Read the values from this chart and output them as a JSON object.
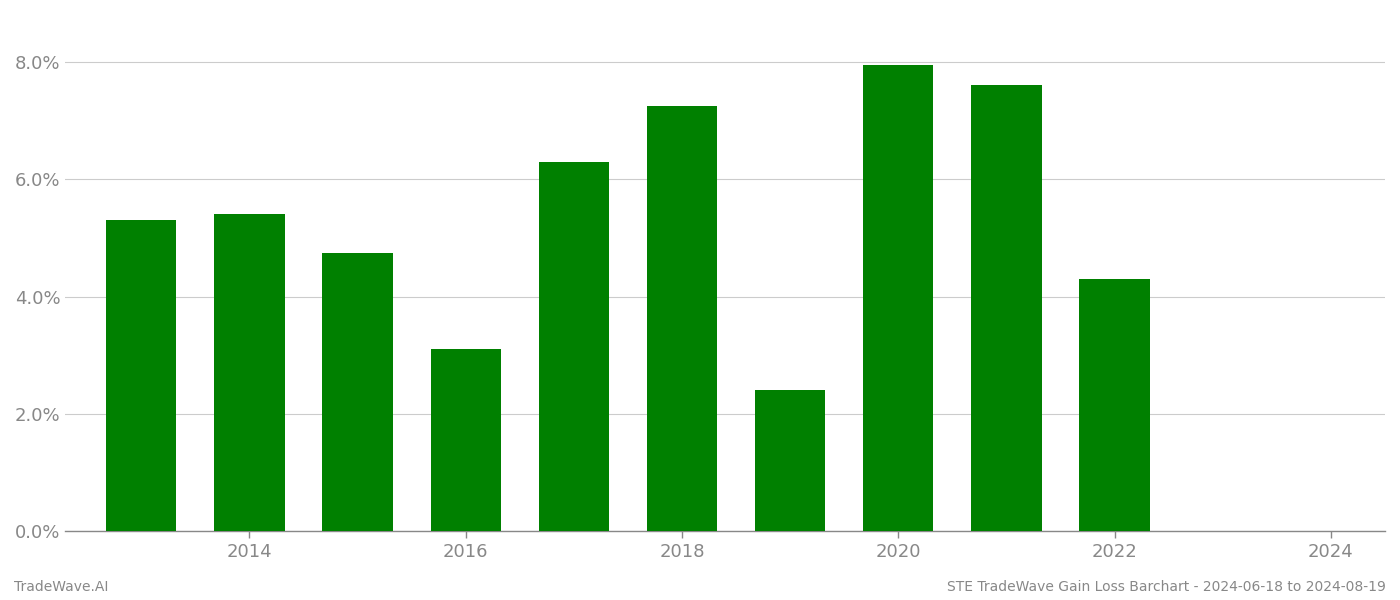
{
  "years": [
    2013,
    2014,
    2015,
    2016,
    2017,
    2018,
    2019,
    2020,
    2021,
    2022,
    2023
  ],
  "values": [
    0.053,
    0.054,
    0.0475,
    0.031,
    0.063,
    0.0725,
    0.024,
    0.0795,
    0.076,
    0.043,
    0.0
  ],
  "bar_color": "#008000",
  "background_color": "#ffffff",
  "grid_color": "#cccccc",
  "axis_color": "#888888",
  "tick_color": "#888888",
  "ylim": [
    0,
    0.088
  ],
  "yticks": [
    0.0,
    0.02,
    0.04,
    0.06,
    0.08
  ],
  "xtick_labels": [
    "2014",
    "2016",
    "2018",
    "2020",
    "2022",
    "2024"
  ],
  "xtick_positions": [
    2014,
    2016,
    2018,
    2020,
    2022,
    2024
  ],
  "xlim": [
    2012.3,
    2024.5
  ],
  "footer_left": "TradeWave.AI",
  "footer_right": "STE TradeWave Gain Loss Barchart - 2024-06-18 to 2024-08-19",
  "footer_fontsize": 10,
  "tick_fontsize": 13,
  "bar_width": 0.65
}
